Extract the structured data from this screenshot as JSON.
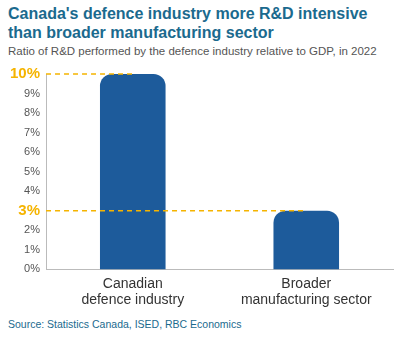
{
  "chart_data": {
    "type": "bar",
    "title": "Canada's defence industry more R&D intensive than broader manufacturing sector",
    "subtitle": "Ratio of R&D performed by the defence industry relative to GDP, in 2022",
    "source": "Source: Statistics Canada, ISED, RBC Economics",
    "categories": [
      "Canadian defence industry",
      "Broader manufacturing sector"
    ],
    "values": [
      10,
      3
    ],
    "color": "#1d5b9b",
    "ylim": [
      0,
      10
    ],
    "yticks": [
      {
        "value": 0,
        "label": "0%"
      },
      {
        "value": 1,
        "label": "1%"
      },
      {
        "value": 2,
        "label": "2%"
      },
      {
        "value": 3,
        "label": "3%"
      },
      {
        "value": 4,
        "label": "4%"
      },
      {
        "value": 5,
        "label": "5%"
      },
      {
        "value": 6,
        "label": "6%"
      },
      {
        "value": 7,
        "label": "7%"
      },
      {
        "value": 8,
        "label": "8%"
      },
      {
        "value": 9,
        "label": "9%"
      },
      {
        "value": 10,
        "label": "10%"
      }
    ],
    "grid": false
  }
}
